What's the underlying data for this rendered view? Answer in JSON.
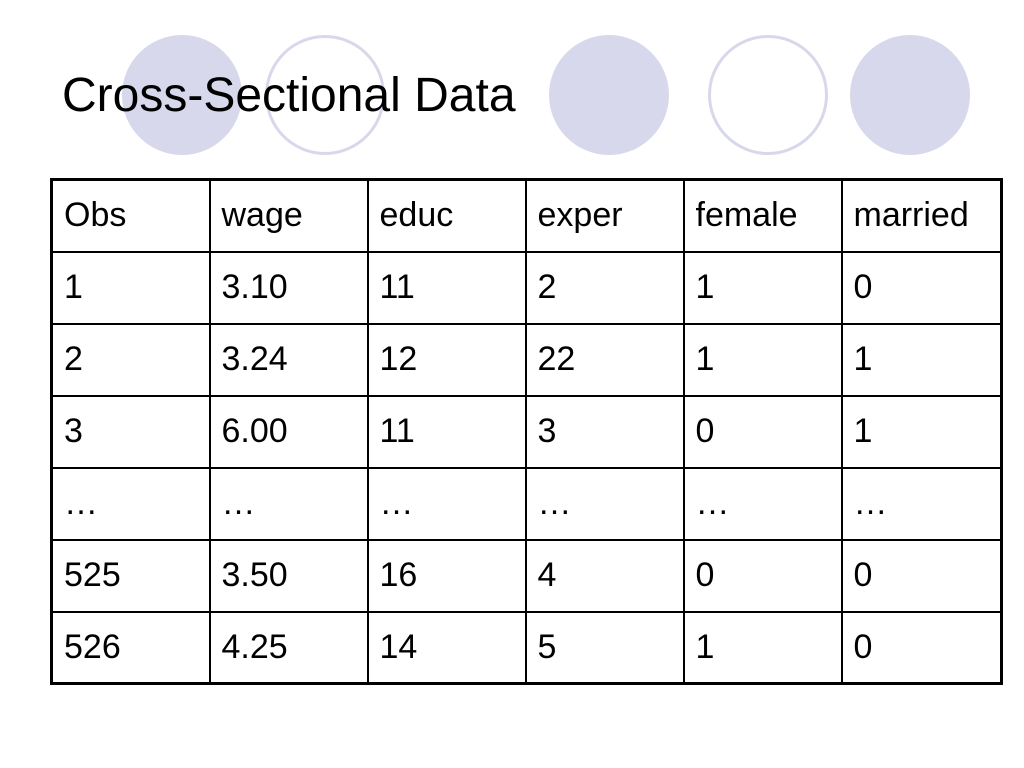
{
  "slide": {
    "title": "Cross-Sectional Data"
  },
  "table": {
    "columns": [
      "Obs",
      "wage",
      "educ",
      "exper",
      "female",
      "married"
    ],
    "rows": [
      [
        "1",
        "3.10",
        "11",
        "2",
        "1",
        "0"
      ],
      [
        "2",
        "3.24",
        "12",
        "22",
        "1",
        "1"
      ],
      [
        "3",
        "6.00",
        "11",
        "3",
        "0",
        "1"
      ],
      [
        "…",
        "…",
        "…",
        "…",
        "…",
        "…"
      ],
      [
        "525",
        "3.50",
        "16",
        "4",
        "0",
        "0"
      ],
      [
        "526",
        "4.25",
        "14",
        "5",
        "1",
        "0"
      ]
    ]
  },
  "colors": {
    "decor_circle": "#d8d8ec",
    "text": "#000000",
    "background": "#ffffff"
  }
}
